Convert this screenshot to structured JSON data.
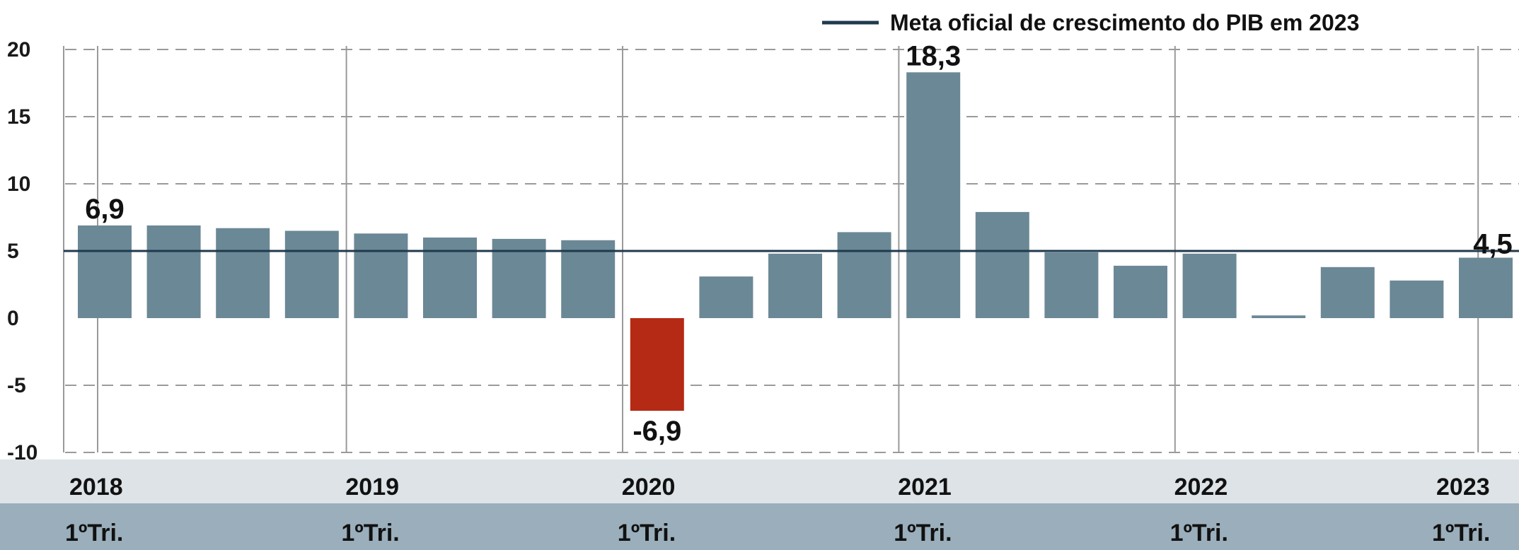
{
  "chart_data": {
    "type": "bar",
    "title": "",
    "xlabel": "",
    "ylabel": "",
    "ylim": [
      -10,
      20
    ],
    "yticks": [
      "20",
      "15",
      "10",
      "5",
      "0",
      "-5",
      "-10"
    ],
    "grid": "horizontal dashed",
    "values": [
      6.9,
      6.9,
      6.7,
      6.5,
      6.3,
      6.0,
      5.9,
      5.8,
      -6.9,
      3.1,
      4.8,
      6.4,
      18.3,
      7.9,
      4.9,
      3.9,
      4.8,
      0.2,
      3.8,
      2.8,
      4.5
    ],
    "bar_color": "#6b8896",
    "negative_color": "#b52a14",
    "data_labels": [
      {
        "index": 0,
        "text": "6,9"
      },
      {
        "index": 8,
        "text": "-6,9"
      },
      {
        "index": 12,
        "text": "18,3"
      },
      {
        "index": 20,
        "text": "4,5"
      }
    ],
    "year_markers": [
      {
        "index": 0,
        "year": "2018",
        "quarter": "1ºTri."
      },
      {
        "index": 4,
        "year": "2019",
        "quarter": "1ºTri."
      },
      {
        "index": 8,
        "year": "2020",
        "quarter": "1ºTri."
      },
      {
        "index": 12,
        "year": "2021",
        "quarter": "1ºTri."
      },
      {
        "index": 16,
        "year": "2022",
        "quarter": "1ºTri."
      },
      {
        "index": 20,
        "year": "2023",
        "quarter": "1ºTri."
      }
    ],
    "reference_line": {
      "value": 5,
      "label": "Meta oficial de crescimento do PIB em 2023",
      "color": "#1f3a4d"
    },
    "legend_position": "top-right"
  }
}
